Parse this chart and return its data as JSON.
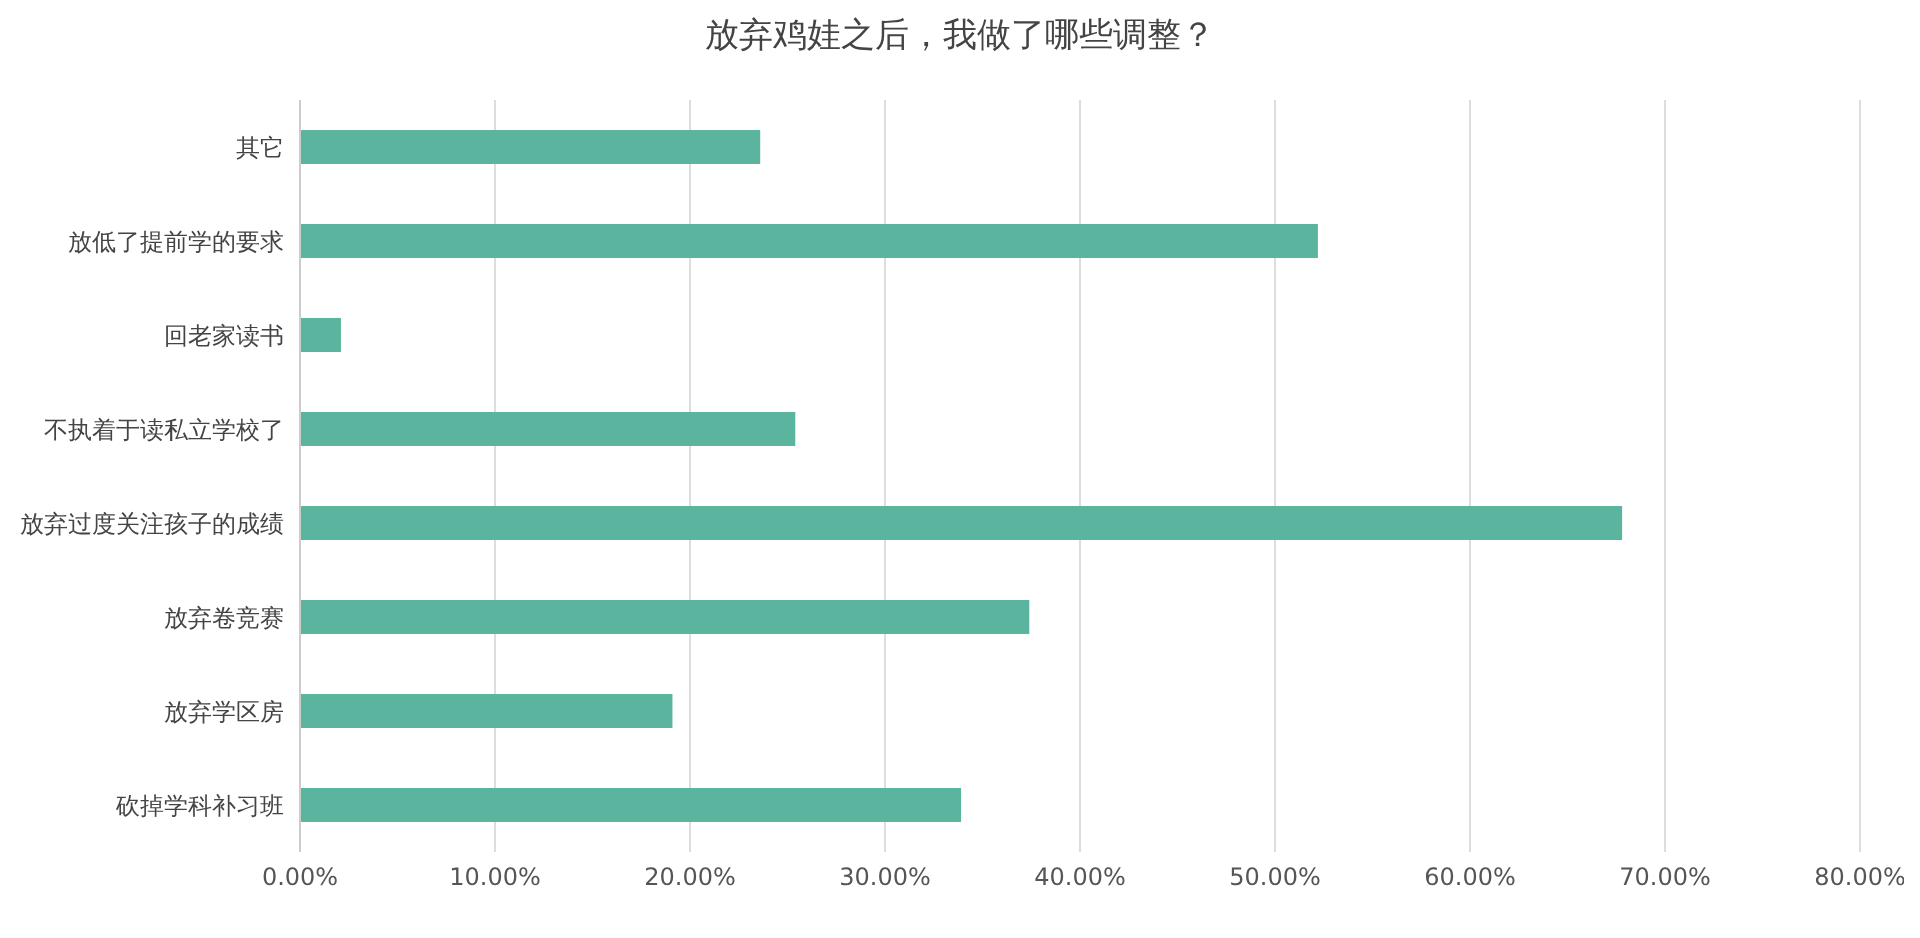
{
  "chart_data": {
    "type": "bar",
    "orientation": "horizontal",
    "title": "放弃鸡娃之后，我做了哪些调整？",
    "categories": [
      "其它",
      "放低了提前学的要求",
      "回老家读书",
      "不执着于读私立学校了",
      "放弃过度关注孩子的成绩",
      "放弃卷竞赛",
      "放弃学区房",
      "砍掉学科补习班"
    ],
    "values": [
      23.6,
      52.2,
      2.1,
      25.4,
      67.8,
      37.4,
      19.1,
      33.9
    ],
    "color": "#5bb59e",
    "xlim": [
      0,
      80
    ],
    "xticks": [
      {
        "value": 0,
        "label": "0.00%"
      },
      {
        "value": 10,
        "label": "10.00%"
      },
      {
        "value": 20,
        "label": "20.00%"
      },
      {
        "value": 30,
        "label": "30.00%"
      },
      {
        "value": 40,
        "label": "40.00%"
      },
      {
        "value": 50,
        "label": "50.00%"
      },
      {
        "value": 60,
        "label": "60.00%"
      },
      {
        "value": 70,
        "label": "70.00%"
      },
      {
        "value": 80,
        "label": "80.00%"
      }
    ],
    "grid": "x",
    "legend": false
  }
}
